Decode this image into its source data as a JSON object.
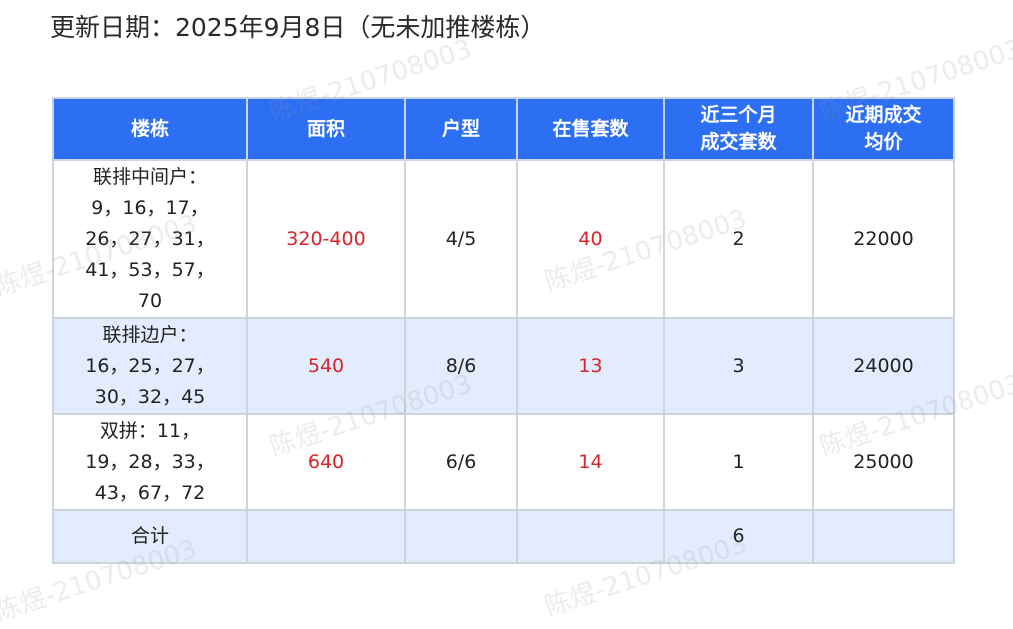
{
  "title": "更新日期：2025年9月8日（无未加推楼栋）",
  "watermark": "陈煜-210708003",
  "colors": {
    "header_bg": "#2d6ff2",
    "alt_row_bg": "#e3ecfc",
    "highlight_red": "#d8232a"
  },
  "table": {
    "headers": [
      "楼栋",
      "面积",
      "户型",
      "在售套数",
      "近三个月\n成交套数",
      "近期成交\n均价"
    ],
    "rows": [
      {
        "building": "联排中间户：\n9，16，17，\n26，27，31，\n41，53，57，\n70",
        "area": "320-400",
        "layout": "4/5",
        "on_sale": "40",
        "sold_3m": "2",
        "avg_price": "22000"
      },
      {
        "building": "联排边户：\n16，25，27，\n30，32，45",
        "area": "540",
        "layout": "8/6",
        "on_sale": "13",
        "sold_3m": "3",
        "avg_price": "24000"
      },
      {
        "building": "双拼：11，\n19，28，33，\n43，67，72",
        "area": "640",
        "layout": "6/6",
        "on_sale": "14",
        "sold_3m": "1",
        "avg_price": "25000"
      }
    ],
    "total": {
      "label": "合计",
      "area": "",
      "layout": "",
      "on_sale": "",
      "sold_3m": "6",
      "avg_price": ""
    }
  }
}
